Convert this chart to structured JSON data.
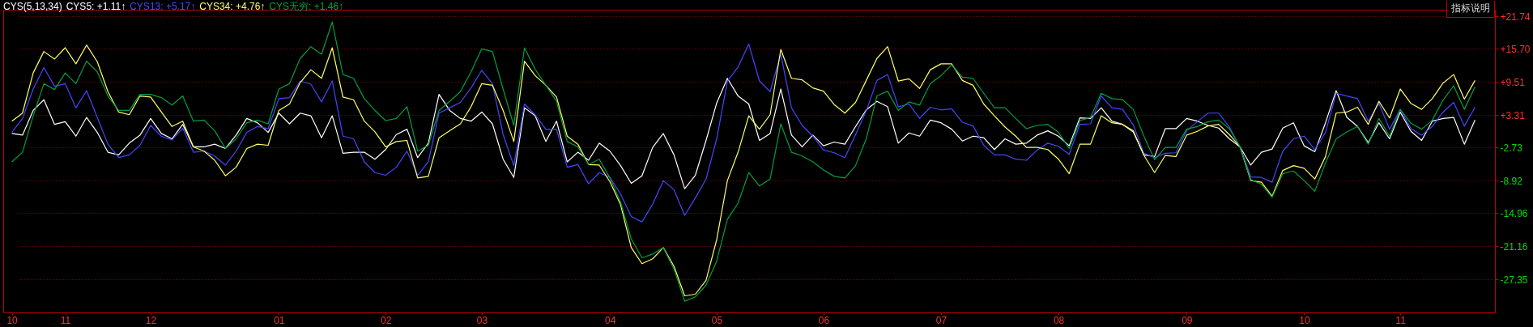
{
  "chart_data": {
    "type": "line",
    "title": "CYS(5,13,34)",
    "categories": [
      "10",
      null,
      null,
      null,
      null,
      "11",
      null,
      null,
      null,
      null,
      null,
      null,
      null,
      "12",
      null,
      null,
      null,
      null,
      null,
      null,
      null,
      null,
      null,
      null,
      null,
      "01",
      null,
      null,
      null,
      null,
      null,
      null,
      null,
      null,
      null,
      "02",
      null,
      null,
      null,
      null,
      null,
      null,
      null,
      null,
      "03",
      null,
      null,
      null,
      null,
      null,
      null,
      null,
      null,
      null,
      null,
      null,
      "04",
      null,
      null,
      null,
      null,
      null,
      null,
      null,
      null,
      null,
      "05",
      null,
      null,
      null,
      null,
      null,
      null,
      null,
      null,
      null,
      "06",
      null,
      null,
      null,
      null,
      null,
      null,
      null,
      null,
      null,
      null,
      "07",
      null,
      null,
      null,
      null,
      null,
      null,
      null,
      null,
      null,
      null,
      "08",
      null,
      null,
      null,
      null,
      null,
      null,
      null,
      null,
      null,
      null,
      null,
      "09",
      null,
      null,
      null,
      null,
      null,
      null,
      null,
      null,
      null,
      null,
      "10",
      null,
      null,
      null,
      null,
      null,
      null,
      null,
      null,
      "11",
      null,
      null,
      null,
      null,
      null,
      null,
      null
    ],
    "series": [
      {
        "name": "CYS5: +1.11↑",
        "color": "#ffffff",
        "values": [
          -0.1,
          -0.4,
          4.2,
          6.2,
          1.6,
          2.1,
          -0.6,
          2.9,
          0.1,
          -3.6,
          -4.1,
          -1.9,
          -0.4,
          2.7,
          -0.1,
          -1.1,
          1.6,
          -2.6,
          -2.6,
          -2.1,
          -2.9,
          -0.4,
          2.7,
          1.9,
          0.1,
          3.7,
          1.7,
          3.7,
          3.2,
          -0.9,
          3.2,
          -3.8,
          -3.6,
          -3.6,
          -4.9,
          -3.1,
          -0.3,
          0.7,
          -4.6,
          -1.9,
          7.2,
          4.2,
          2.7,
          2.2,
          3.9,
          1.7,
          -4.9,
          -8.3,
          4.7,
          3.2,
          -1.6,
          2.2,
          -5.4,
          -3.6,
          -5.1,
          -1.9,
          -3.4,
          -6.1,
          -9.4,
          -8.0,
          -2.7,
          -0.1,
          -4.1,
          -10.4,
          -7.9,
          -1.4,
          5.6,
          10.2,
          6.9,
          5.4,
          -1.4,
          -0.1,
          8.2,
          -0.4,
          -2.6,
          -0.4,
          -2.4,
          -1.7,
          -2.1,
          1.2,
          4.3,
          5.9,
          4.9,
          -1.9,
          0.0,
          -0.6,
          2.4,
          1.9,
          0.7,
          -1.5,
          -0.6,
          -0.9,
          -3.1,
          -1.1,
          -2.1,
          -1.9,
          -0.4,
          0.4,
          -0.6,
          -2.4,
          2.8,
          2.7,
          4.7,
          2.2,
          1.6,
          0.2,
          -4.1,
          -4.4,
          0.8,
          0.8,
          2.7,
          2.2,
          1.4,
          0.9,
          -1.1,
          -2.6,
          -6.0,
          -3.6,
          -3.0,
          0.9,
          1.9,
          -2.4,
          -3.5,
          1.9,
          7.9,
          2.9,
          1.2,
          -1.8,
          1.9,
          -1.1,
          3.9,
          0.3,
          -1.4,
          2.2,
          2.7,
          2.9,
          -2.1,
          2.4
        ]
      },
      {
        "name": "CYS13: +5.17↑",
        "color": "#4646ff",
        "values": [
          0.1,
          2.7,
          8.2,
          12.2,
          8.7,
          9.2,
          4.7,
          7.9,
          2.9,
          -2.1,
          -4.6,
          -4.1,
          -2.3,
          1.4,
          -0.6,
          -1.3,
          0.9,
          -3.6,
          -3.4,
          -4.3,
          -6.0,
          -3.4,
          0.1,
          1.2,
          0.8,
          6.4,
          6.6,
          9.7,
          9.1,
          5.8,
          9.7,
          -0.6,
          -1.1,
          -5.4,
          -7.4,
          -7.9,
          -6.4,
          -3.4,
          -7.9,
          -5.4,
          3.7,
          4.7,
          5.7,
          8.4,
          11.7,
          9.2,
          -0.3,
          -6.1,
          5.4,
          3.4,
          0.7,
          0.7,
          -6.4,
          -5.9,
          -9.5,
          -7.4,
          -8.3,
          -11.4,
          -15.6,
          -16.6,
          -13.3,
          -8.9,
          -10.6,
          -15.4,
          -12.1,
          -8.6,
          -1.1,
          9.7,
          12.3,
          16.6,
          9.7,
          7.7,
          14.7,
          4.7,
          1.4,
          -0.6,
          -3.2,
          -3.7,
          -4.6,
          -0.3,
          4.1,
          9.8,
          10.9,
          4.9,
          5.4,
          2.7,
          4.8,
          4.3,
          4.5,
          2.0,
          1.3,
          -2.3,
          -4.1,
          -4.1,
          -4.9,
          -5.1,
          -3.2,
          -1.9,
          -2.5,
          -4.0,
          1.6,
          1.7,
          6.9,
          4.7,
          4.4,
          1.5,
          -3.8,
          -4.6,
          -3.8,
          -3.7,
          0.4,
          2.1,
          3.7,
          3.7,
          1.1,
          -2.6,
          -8.2,
          -8.3,
          -9.2,
          -3.4,
          -1.1,
          -0.6,
          -3.1,
          0.1,
          7.4,
          6.9,
          6.4,
          2.2,
          5.5,
          0.7,
          4.4,
          0.8,
          -0.4,
          1.2,
          3.9,
          5.7,
          1.3,
          4.8
        ]
      },
      {
        "name": "CYS34: +4.76↑",
        "color": "#ffff66",
        "values": [
          2.2,
          3.7,
          11.2,
          15.2,
          13.8,
          15.9,
          12.9,
          16.4,
          13.3,
          7.7,
          3.9,
          3.4,
          6.9,
          6.7,
          3.9,
          1.2,
          2.2,
          -2.6,
          -3.4,
          -5.1,
          -8.0,
          -6.4,
          -2.9,
          -2.1,
          -2.3,
          4.2,
          5.4,
          9.4,
          11.8,
          10.2,
          15.9,
          6.7,
          6.2,
          2.2,
          0.2,
          -2.6,
          -1.6,
          -1.4,
          -8.4,
          -8.1,
          -0.9,
          0.4,
          1.7,
          4.9,
          9.2,
          8.9,
          4.2,
          -1.6,
          13.4,
          10.7,
          8.9,
          6.7,
          -0.6,
          -2.1,
          -5.9,
          -6.0,
          -9.1,
          -13.4,
          -21.4,
          -24.4,
          -23.5,
          -21.4,
          -24.9,
          -30.4,
          -30.1,
          -27.5,
          -19.9,
          -8.9,
          -3.6,
          3.2,
          0.7,
          3.4,
          15.6,
          10.2,
          9.9,
          8.4,
          7.8,
          5.3,
          3.7,
          5.7,
          9.8,
          13.9,
          16.1,
          9.7,
          10.1,
          8.3,
          11.8,
          12.9,
          12.9,
          9.8,
          8.9,
          5.4,
          3.2,
          1.1,
          -0.6,
          -2.7,
          -2.7,
          -3.1,
          -4.9,
          -7.6,
          -2.1,
          -2.1,
          3.2,
          1.9,
          1.6,
          0.4,
          -4.2,
          -7.4,
          -4.2,
          -4.4,
          -0.4,
          0.3,
          1.3,
          1.6,
          -0.3,
          -2.6,
          -8.9,
          -9.2,
          -11.8,
          -7.0,
          -6.1,
          -6.6,
          -8.6,
          -4.4,
          3.7,
          3.9,
          4.8,
          1.6,
          5.9,
          2.8,
          8.2,
          5.5,
          4.4,
          6.4,
          9.3,
          10.9,
          6.3,
          9.8
        ]
      },
      {
        "name": "CYS无穷: +1.46↑",
        "color": "#00a040",
        "values": [
          -5.4,
          -3.6,
          3.2,
          9.2,
          8.1,
          11.2,
          9.2,
          13.4,
          11.4,
          6.9,
          4.2,
          4.2,
          7.2,
          7.2,
          6.6,
          5.2,
          6.9,
          2.2,
          2.4,
          0.4,
          -2.9,
          -1.1,
          1.9,
          2.4,
          1.7,
          8.2,
          9.2,
          13.9,
          16.1,
          14.7,
          20.7,
          10.9,
          10.2,
          6.4,
          4.2,
          2.3,
          2.7,
          4.9,
          -3.4,
          -2.3,
          4.2,
          5.9,
          7.7,
          11.4,
          15.7,
          15.2,
          8.2,
          1.4,
          15.9,
          11.9,
          8.9,
          5.9,
          -1.6,
          -2.6,
          -5.9,
          -4.9,
          -8.4,
          -12.9,
          -19.8,
          -23.3,
          -22.6,
          -21.4,
          -25.4,
          -31.4,
          -30.6,
          -28.4,
          -23.9,
          -16.1,
          -13.1,
          -7.4,
          -9.9,
          -8.6,
          1.7,
          -3.6,
          -4.3,
          -5.4,
          -6.9,
          -8.1,
          -8.4,
          -6.1,
          -1.1,
          6.9,
          7.8,
          4.2,
          5.8,
          5.2,
          9.2,
          10.7,
          12.7,
          10.4,
          10.2,
          7.4,
          4.7,
          4.7,
          2.7,
          0.8,
          1.4,
          1.6,
          0.1,
          -2.9,
          2.3,
          2.9,
          7.4,
          6.4,
          6.2,
          4.4,
          -0.6,
          -5.0,
          -2.7,
          -2.7,
          0.7,
          1.2,
          2.1,
          2.4,
          0.8,
          -2.6,
          -8.7,
          -9.6,
          -12.0,
          -7.6,
          -7.1,
          -8.9,
          -10.9,
          -5.6,
          -1.1,
          0.2,
          1.2,
          -2.1,
          2.7,
          -0.6,
          4.4,
          1.8,
          0.7,
          2.4,
          6.1,
          8.8,
          4.4,
          8.6
        ]
      }
    ],
    "ylim": [
      -33.5,
      23.0
    ],
    "yticks": [
      {
        "value": 21.74,
        "label": "+21.74"
      },
      {
        "value": 15.7,
        "label": "+15.70"
      },
      {
        "value": 9.51,
        "label": "+9.51"
      },
      {
        "value": 3.31,
        "label": "+3.31"
      },
      {
        "value": -2.73,
        "label": "-2.73"
      },
      {
        "value": -8.92,
        "label": "-8.92"
      },
      {
        "value": -14.96,
        "label": "-14.96"
      },
      {
        "value": -21.16,
        "label": "-21.16"
      },
      {
        "value": -27.35,
        "label": "-27.35"
      }
    ],
    "grid": "y",
    "legend": "top left",
    "annotations": [
      "指标说明"
    ]
  }
}
